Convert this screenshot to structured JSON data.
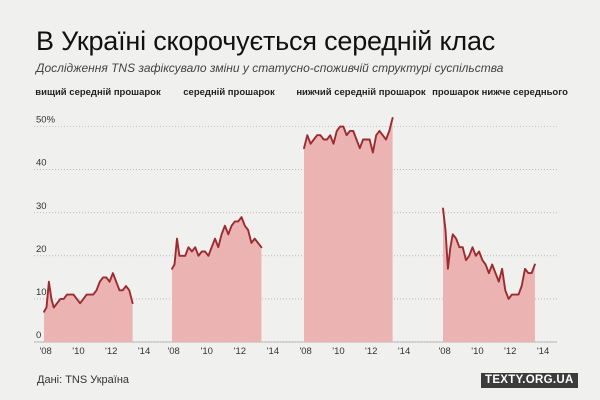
{
  "title": "В Україні скорочується середній клас",
  "subtitle": "Дослідження TNS зафіксувало зміни у статусно-споживчій структурі суспільства",
  "source": "Дані: TNS Україна",
  "brand": "TEXTY.ORG.UA",
  "colors": {
    "area": "#ebb3b1",
    "line": "#9c2b30",
    "grid": "#9a9a9a"
  },
  "chart_data": {
    "type": "area",
    "ylim": [
      0,
      52
    ],
    "yticks": [
      {
        "value": 0,
        "label": "0"
      },
      {
        "value": 10,
        "label": "10"
      },
      {
        "value": 20,
        "label": "20"
      },
      {
        "value": 30,
        "label": "30"
      },
      {
        "value": 40,
        "label": "40"
      },
      {
        "value": 50,
        "label": "50%"
      }
    ],
    "xlim": [
      2007.9,
      2014.85
    ],
    "xticks": [
      {
        "value": 2008,
        "label": "'08"
      },
      {
        "value": 2010,
        "label": "'10"
      },
      {
        "value": 2012,
        "label": "'12"
      },
      {
        "value": 2014,
        "label": "'14"
      }
    ],
    "grid": true,
    "series": [
      {
        "name": "вищий середній прошарок",
        "values": [
          [
            2007.9,
            7
          ],
          [
            2008.05,
            8
          ],
          [
            2008.2,
            14
          ],
          [
            2008.35,
            10
          ],
          [
            2008.5,
            8
          ],
          [
            2008.7,
            9
          ],
          [
            2008.9,
            10
          ],
          [
            2009.1,
            10
          ],
          [
            2009.3,
            11
          ],
          [
            2009.5,
            11
          ],
          [
            2009.7,
            11
          ],
          [
            2009.9,
            10
          ],
          [
            2010.1,
            9
          ],
          [
            2010.3,
            10
          ],
          [
            2010.5,
            11
          ],
          [
            2010.7,
            11
          ],
          [
            2010.9,
            11
          ],
          [
            2011.1,
            12
          ],
          [
            2011.3,
            14
          ],
          [
            2011.5,
            15
          ],
          [
            2011.7,
            15
          ],
          [
            2011.9,
            14
          ],
          [
            2012.1,
            16
          ],
          [
            2012.3,
            14
          ],
          [
            2012.5,
            12
          ],
          [
            2012.7,
            12
          ],
          [
            2012.9,
            13
          ],
          [
            2013.1,
            12
          ],
          [
            2013.3,
            9
          ]
        ]
      },
      {
        "name": "середній прошарок",
        "values": [
          [
            2007.9,
            17
          ],
          [
            2008.05,
            18
          ],
          [
            2008.2,
            24
          ],
          [
            2008.35,
            20
          ],
          [
            2008.5,
            20
          ],
          [
            2008.7,
            20
          ],
          [
            2008.9,
            22
          ],
          [
            2009.1,
            21
          ],
          [
            2009.3,
            22
          ],
          [
            2009.5,
            20
          ],
          [
            2009.7,
            21
          ],
          [
            2009.9,
            21
          ],
          [
            2010.1,
            20
          ],
          [
            2010.3,
            22
          ],
          [
            2010.5,
            24
          ],
          [
            2010.7,
            22
          ],
          [
            2010.9,
            25
          ],
          [
            2011.1,
            27
          ],
          [
            2011.3,
            25
          ],
          [
            2011.5,
            27
          ],
          [
            2011.7,
            28
          ],
          [
            2011.9,
            28
          ],
          [
            2012.1,
            29
          ],
          [
            2012.3,
            27
          ],
          [
            2012.5,
            26
          ],
          [
            2012.7,
            23
          ],
          [
            2012.9,
            24
          ],
          [
            2013.1,
            23
          ],
          [
            2013.3,
            22
          ]
        ]
      },
      {
        "name": "нижчий середній прошарок",
        "values": [
          [
            2007.9,
            45
          ],
          [
            2008.1,
            48
          ],
          [
            2008.3,
            46
          ],
          [
            2008.5,
            47
          ],
          [
            2008.7,
            48
          ],
          [
            2008.9,
            48
          ],
          [
            2009.1,
            47
          ],
          [
            2009.3,
            47
          ],
          [
            2009.5,
            48
          ],
          [
            2009.7,
            46
          ],
          [
            2009.9,
            49
          ],
          [
            2010.1,
            50
          ],
          [
            2010.3,
            50
          ],
          [
            2010.5,
            48
          ],
          [
            2010.7,
            49
          ],
          [
            2010.9,
            49
          ],
          [
            2011.1,
            47
          ],
          [
            2011.3,
            45
          ],
          [
            2011.5,
            47
          ],
          [
            2011.7,
            47
          ],
          [
            2011.9,
            47
          ],
          [
            2012.1,
            44
          ],
          [
            2012.3,
            48
          ],
          [
            2012.5,
            49
          ],
          [
            2012.7,
            48
          ],
          [
            2012.9,
            47
          ],
          [
            2013.1,
            49
          ],
          [
            2013.3,
            52
          ]
        ]
      },
      {
        "name": "прошарок нижче середнього",
        "values": [
          [
            2007.9,
            31
          ],
          [
            2008.05,
            26
          ],
          [
            2008.2,
            17
          ],
          [
            2008.35,
            22
          ],
          [
            2008.5,
            25
          ],
          [
            2008.7,
            24
          ],
          [
            2008.9,
            22
          ],
          [
            2009.1,
            22
          ],
          [
            2009.3,
            19
          ],
          [
            2009.5,
            20
          ],
          [
            2009.7,
            22
          ],
          [
            2009.9,
            20
          ],
          [
            2010.1,
            21
          ],
          [
            2010.3,
            19
          ],
          [
            2010.5,
            18
          ],
          [
            2010.7,
            16
          ],
          [
            2010.9,
            18
          ],
          [
            2011.1,
            16
          ],
          [
            2011.3,
            14
          ],
          [
            2011.5,
            17
          ],
          [
            2011.7,
            12
          ],
          [
            2011.9,
            10
          ],
          [
            2012.1,
            11
          ],
          [
            2012.3,
            11
          ],
          [
            2012.5,
            11
          ],
          [
            2012.7,
            13
          ],
          [
            2012.9,
            17
          ],
          [
            2013.1,
            16
          ],
          [
            2013.3,
            16
          ],
          [
            2013.5,
            18
          ]
        ]
      }
    ]
  }
}
